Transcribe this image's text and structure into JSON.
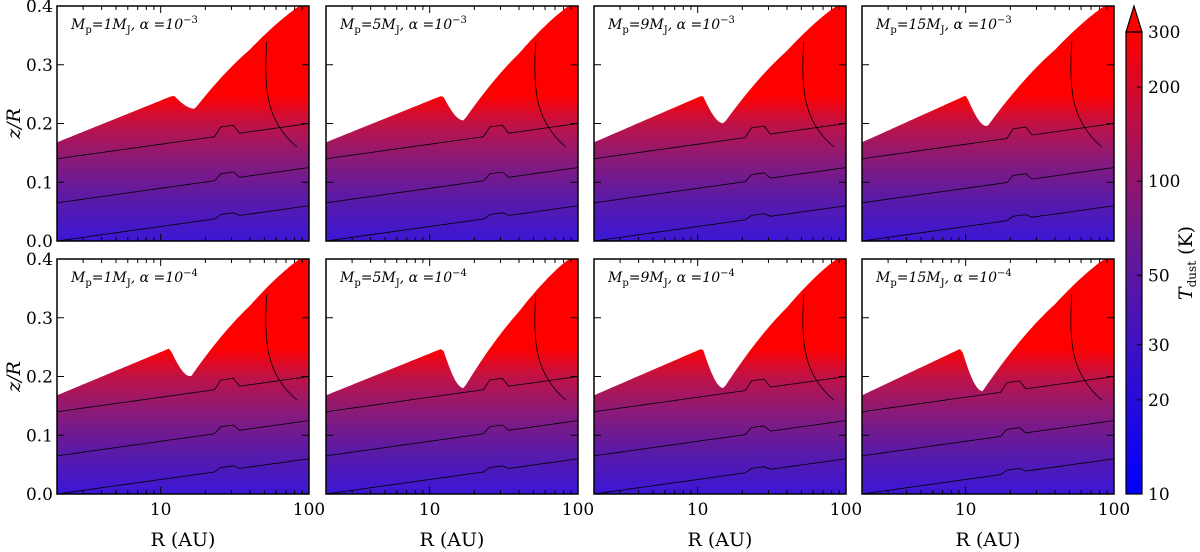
{
  "chart_data": {
    "type": "heatmap",
    "description_of_quantity": "dust temperature",
    "xlabel": "R (AU)",
    "ylabel": "z/R",
    "xscale": "log",
    "xlim": [
      2,
      100
    ],
    "ylim": [
      0.0,
      0.4
    ],
    "x_ticks": [
      10,
      100
    ],
    "x_tick_labels": [
      "10",
      "100"
    ],
    "y_ticks": [
      0.0,
      0.1,
      0.2,
      0.3,
      0.4
    ],
    "y_tick_labels": [
      "0.0",
      "0.1",
      "0.2",
      "0.3",
      "0.4"
    ],
    "colorbar": {
      "label": "T_dust (K)",
      "label_main": "T",
      "label_sub": "dust",
      "label_unit": "(K)",
      "scale": "log",
      "range": [
        10,
        300
      ],
      "extend": "max",
      "ticks": [
        10,
        20,
        30,
        50,
        100,
        200,
        300
      ],
      "tick_labels": [
        "10",
        "20",
        "30",
        "50",
        "100",
        "200",
        "300"
      ],
      "colors": {
        "low": "#0000ff",
        "mid": "#5a1e8c",
        "high": "#ff0000"
      }
    },
    "panels": [
      {
        "row": 0,
        "col": 0,
        "Mp": "1",
        "alpha_exp": "-3",
        "mp_text": "M",
        "mp_sub": "p",
        "eq1": "=1",
        "mj": "M",
        "mj_sub": "J",
        "alpha_text": ", α =10",
        "alpha_sup": "−3",
        "gap_R_AU": 17,
        "gap_floor_zR": 0.225,
        "surface_inner_zR": 0.168,
        "surface_outer_zR": 0.38
      },
      {
        "row": 0,
        "col": 1,
        "Mp": "5",
        "alpha_exp": "-3",
        "mp_text": "M",
        "mp_sub": "p",
        "eq1": "=5",
        "mj": "M",
        "mj_sub": "J",
        "alpha_text": ", α =10",
        "alpha_sup": "−3",
        "gap_R_AU": 17,
        "gap_floor_zR": 0.205,
        "surface_inner_zR": 0.168,
        "surface_outer_zR": 0.38
      },
      {
        "row": 0,
        "col": 2,
        "Mp": "9",
        "alpha_exp": "-3",
        "mp_text": "M",
        "mp_sub": "p",
        "eq1": "=9",
        "mj": "M",
        "mj_sub": "J",
        "alpha_text": ", α =10",
        "alpha_sup": "−3",
        "gap_R_AU": 15,
        "gap_floor_zR": 0.2,
        "surface_inner_zR": 0.168,
        "surface_outer_zR": 0.38
      },
      {
        "row": 0,
        "col": 3,
        "Mp": "15",
        "alpha_exp": "-3",
        "mp_text": "M",
        "mp_sub": "p",
        "eq1": "=15",
        "mj": "M",
        "mj_sub": "J",
        "alpha_text": ", α =10",
        "alpha_sup": "−3",
        "gap_R_AU": 14,
        "gap_floor_zR": 0.195,
        "surface_inner_zR": 0.168,
        "surface_outer_zR": 0.38
      },
      {
        "row": 1,
        "col": 0,
        "Mp": "1",
        "alpha_exp": "-4",
        "mp_text": "M",
        "mp_sub": "p",
        "eq1": "=1",
        "mj": "M",
        "mj_sub": "J",
        "alpha_text": ", α =10",
        "alpha_sup": "−4",
        "gap_R_AU": 16,
        "gap_floor_zR": 0.2,
        "surface_inner_zR": 0.168,
        "surface_outer_zR": 0.38
      },
      {
        "row": 1,
        "col": 1,
        "Mp": "5",
        "alpha_exp": "-4",
        "mp_text": "M",
        "mp_sub": "p",
        "eq1": "=5",
        "mj": "M",
        "mj_sub": "J",
        "alpha_text": ", α =10",
        "alpha_sup": "−4",
        "gap_R_AU": 17,
        "gap_floor_zR": 0.18,
        "surface_inner_zR": 0.168,
        "surface_outer_zR": 0.38
      },
      {
        "row": 1,
        "col": 2,
        "Mp": "9",
        "alpha_exp": "-4",
        "mp_text": "M",
        "mp_sub": "p",
        "eq1": "=9",
        "mj": "M",
        "mj_sub": "J",
        "alpha_text": ", α =10",
        "alpha_sup": "−4",
        "gap_R_AU": 15,
        "gap_floor_zR": 0.18,
        "surface_inner_zR": 0.168,
        "surface_outer_zR": 0.38
      },
      {
        "row": 1,
        "col": 3,
        "Mp": "15",
        "alpha_exp": "-4",
        "mp_text": "M",
        "mp_sub": "p",
        "eq1": "=15",
        "mj": "M",
        "mj_sub": "J",
        "alpha_text": ", α =10",
        "alpha_sup": "−4",
        "gap_R_AU": 13,
        "gap_floor_zR": 0.175,
        "surface_inner_zR": 0.168,
        "surface_outer_zR": 0.38
      }
    ]
  }
}
